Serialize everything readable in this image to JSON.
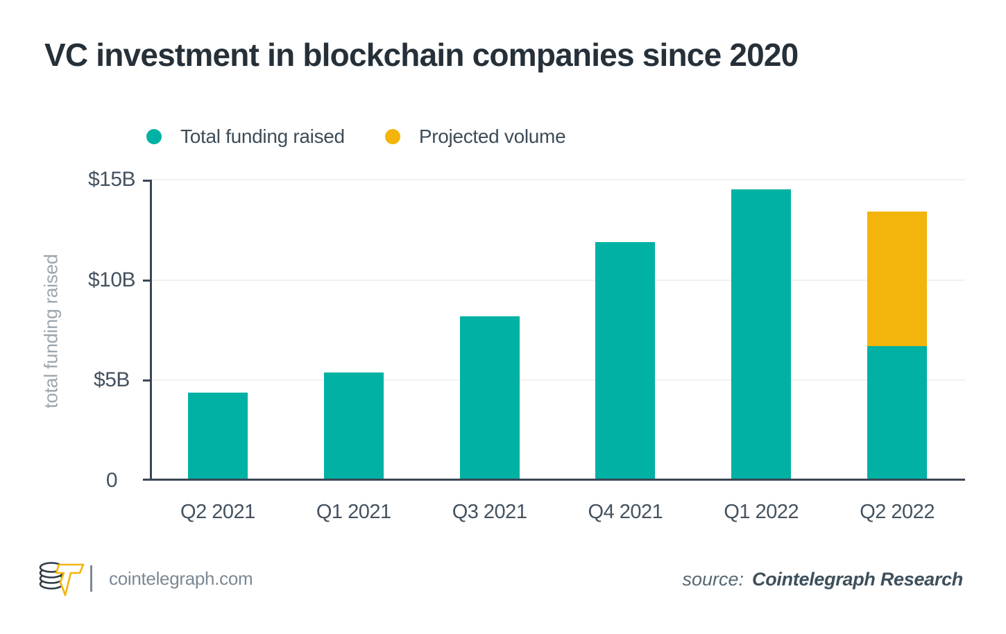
{
  "title": "VC investment in blockchain companies since 2020",
  "legend": [
    {
      "label": "Total funding raised",
      "color": "#00b1a4"
    },
    {
      "label": "Projected volume",
      "color": "#f3b40b"
    }
  ],
  "chart_data": {
    "type": "bar",
    "stacked": true,
    "title": "VC investment in blockchain companies since 2020",
    "categories": [
      "Q2 2021",
      "Q1 2021",
      "Q3 2021",
      "Q4 2021",
      "Q1 2022",
      "Q2 2022"
    ],
    "series": [
      {
        "name": "Total funding raised",
        "color": "#00b1a4",
        "values": [
          4.4,
          5.4,
          8.2,
          11.9,
          14.5,
          6.7
        ]
      },
      {
        "name": "Projected volume",
        "color": "#f3b40b",
        "values": [
          0,
          0,
          0,
          0,
          0,
          6.7
        ]
      }
    ],
    "xlabel": "",
    "ylabel": "total funding raised",
    "ylim": [
      0,
      15
    ],
    "yticks": [
      {
        "value": 0,
        "label": "0"
      },
      {
        "value": 5,
        "label": "$5B"
      },
      {
        "value": 10,
        "label": "$10B"
      },
      {
        "value": 15,
        "label": "$15B"
      }
    ],
    "grid": "horizontal",
    "legend_position": "top",
    "units": "billions USD"
  },
  "colors": {
    "axis": "#3a4653",
    "grid": "#f1f1f2",
    "tick_text": "#44525f",
    "bar_teal": "#00b1a4",
    "bar_yellow": "#f3b40b"
  },
  "footer": {
    "site": "cointelegraph.com",
    "source_label": "source:",
    "source_value": "Cointelegraph Research"
  }
}
